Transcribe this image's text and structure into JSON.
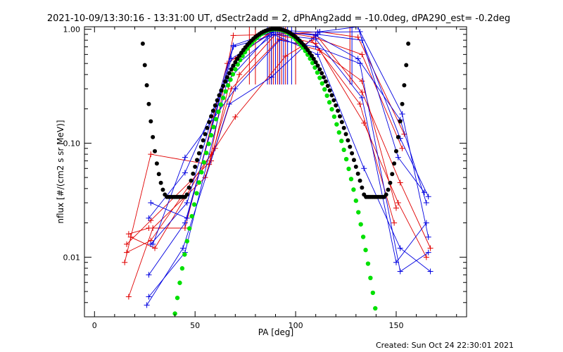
{
  "chart_data": {
    "type": "line",
    "title": "2021-10-09/13:30:16 - 13:31:00 UT, dSectr2add = 2, dPhAng2add = -10.0deg, dPA290_est= -0.2deg",
    "xlabel": "PA [deg]",
    "ylabel": "nflux [#/(cm2 s sr MeV)]",
    "xlim": [
      -5,
      185
    ],
    "ylim": [
      0.003,
      1.05
    ],
    "yscale": "log",
    "x_ticks": [
      0,
      50,
      100,
      150
    ],
    "x_tick_labels": [
      "0",
      "50",
      "100",
      "150"
    ],
    "y_ticks": [
      0.01,
      0.1,
      1.0
    ],
    "y_tick_labels": [
      "0.01",
      "0.10",
      "1.00"
    ],
    "footer": "Created: Sun Oct 24 22:30:01 2021",
    "colors": {
      "red": "#e00000",
      "blue": "#0000e0",
      "black": "#000000",
      "green": "#00e000"
    },
    "series": [
      {
        "color": "red",
        "x": [
          16,
          28,
          58,
          70,
          88,
          110,
          133,
          152,
          167
        ],
        "y": [
          0.013,
          0.021,
          0.07,
          0.55,
          0.96,
          0.9,
          0.28,
          0.045,
          0.012
        ]
      },
      {
        "color": "red",
        "x": [
          16,
          28,
          60,
          72,
          90,
          110,
          134,
          151,
          165
        ],
        "y": [
          0.011,
          0.014,
          0.09,
          0.4,
          0.9,
          0.75,
          0.15,
          0.03,
          0.01
        ]
      },
      {
        "color": "red",
        "x": [
          17,
          29,
          55,
          68,
          92,
          112,
          133,
          150
        ],
        "y": [
          0.0045,
          0.018,
          0.05,
          0.3,
          0.82,
          0.65,
          0.35,
          0.027
        ]
      },
      {
        "color": "red",
        "x": [
          18,
          30,
          58,
          70,
          95,
          108,
          132,
          149
        ],
        "y": [
          0.015,
          0.012,
          0.08,
          0.17,
          0.58,
          0.8,
          0.22,
          0.02
        ]
      },
      {
        "color": "red",
        "x": [
          15,
          28,
          57,
          69,
          90,
          112,
          131,
          154
        ],
        "y": [
          0.009,
          0.08,
          0.065,
          0.88,
          0.9,
          0.95,
          0.85,
          0.12
        ]
      },
      {
        "color": "red",
        "x": [
          17,
          27,
          45,
          66,
          89,
          109,
          133,
          153
        ],
        "y": [
          0.016,
          0.018,
          0.018,
          0.5,
          0.98,
          0.85,
          0.6,
          0.09
        ]
      },
      {
        "color": "blue",
        "x": [
          27,
          45,
          66,
          88,
          111,
          133,
          152,
          166
        ],
        "y": [
          0.0045,
          0.011,
          0.35,
          0.93,
          0.9,
          0.8,
          0.11,
          0.034
        ]
      },
      {
        "color": "blue",
        "x": [
          27,
          45,
          68,
          90,
          110,
          131,
          152,
          165
        ],
        "y": [
          0.007,
          0.02,
          0.55,
          0.97,
          0.88,
          0.55,
          0.16,
          0.03
        ]
      },
      {
        "color": "blue",
        "x": [
          28,
          46,
          69,
          91,
          111,
          132,
          153,
          166
        ],
        "y": [
          0.013,
          0.03,
          0.72,
          0.98,
          0.94,
          0.95,
          0.18,
          0.015
        ]
      },
      {
        "color": "blue",
        "x": [
          27,
          45,
          68,
          89,
          111,
          134,
          152,
          167
        ],
        "y": [
          0.022,
          0.055,
          0.45,
          0.9,
          0.6,
          0.06,
          0.012,
          0.0075
        ]
      },
      {
        "color": "blue",
        "x": [
          28,
          46,
          69,
          90,
          110,
          133,
          150,
          165
        ],
        "y": [
          0.03,
          0.022,
          0.7,
          0.9,
          0.82,
          0.25,
          0.009,
          0.02
        ]
      },
      {
        "color": "blue",
        "x": [
          26,
          44,
          67,
          88,
          112,
          131,
          151,
          164
        ],
        "y": [
          0.0038,
          0.012,
          0.22,
          0.38,
          0.95,
          1.05,
          0.075,
          0.037
        ]
      },
      {
        "color": "blue",
        "x": [
          29,
          45,
          70,
          92,
          110,
          132,
          152,
          166
        ],
        "y": [
          0.013,
          0.075,
          0.3,
          0.8,
          0.7,
          0.5,
          0.0075,
          0.011
        ]
      }
    ],
    "model_black": {
      "color": "black",
      "x_range": [
        20,
        160
      ],
      "pa_min": [
        34,
        146
      ],
      "floor": 0.025
    },
    "model_green": {
      "color": "green",
      "x_range": [
        28,
        144
      ],
      "center": 90
    },
    "vertical_lines": [
      {
        "color": "red",
        "x": [
          77,
          80,
          87,
          88,
          89,
          91,
          92,
          93,
          95,
          100,
          127
        ]
      },
      {
        "color": "blue",
        "x": [
          86,
          88,
          90,
          92,
          94,
          96,
          98,
          128
        ]
      }
    ]
  }
}
